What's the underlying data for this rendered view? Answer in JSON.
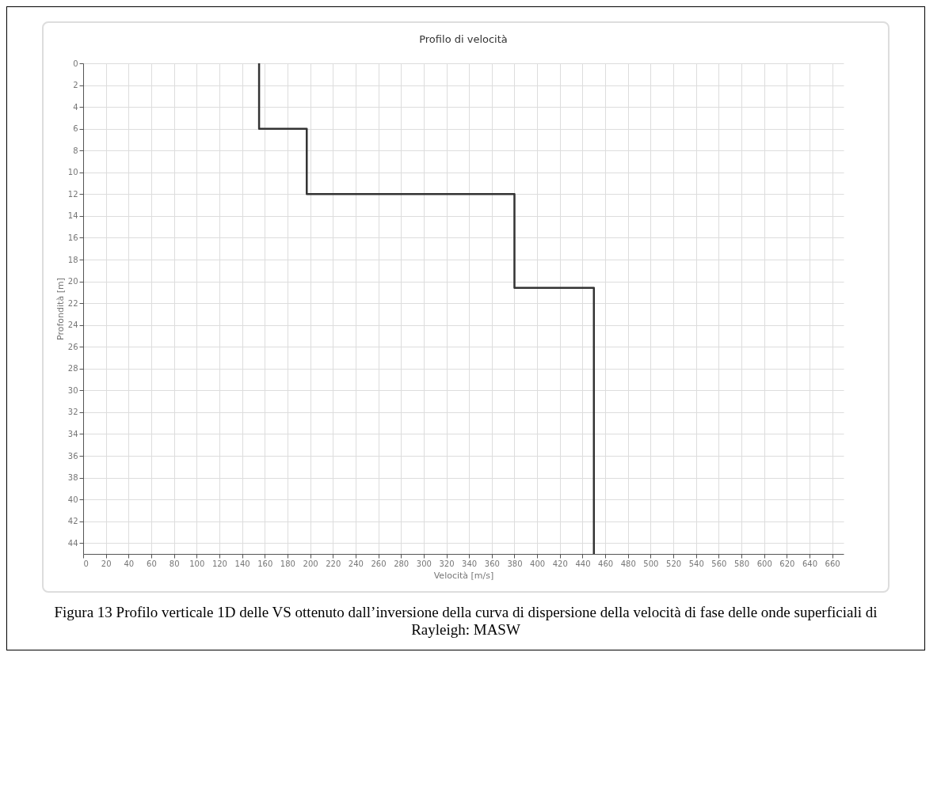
{
  "chart_data": {
    "type": "line",
    "title": "Profilo di velocità",
    "xlabel": "Velocità [m/s]",
    "ylabel": "Profondità [m]",
    "x": [
      155,
      155,
      197,
      197,
      380,
      380,
      450,
      450
    ],
    "series": [
      {
        "color": "#333333",
        "values": [
          0,
          6,
          6,
          12,
          12,
          20.6,
          20.6,
          45
        ]
      }
    ],
    "xlim": [
      0,
      670
    ],
    "xticks": [
      0,
      20,
      40,
      60,
      80,
      100,
      120,
      140,
      160,
      180,
      200,
      220,
      240,
      260,
      280,
      300,
      320,
      340,
      360,
      380,
      400,
      420,
      440,
      460,
      480,
      500,
      520,
      540,
      560,
      580,
      600,
      620,
      640,
      660
    ],
    "ylim": [
      45,
      0
    ],
    "yticks": [
      0,
      2,
      4,
      6,
      8,
      10,
      12,
      14,
      16,
      18,
      20,
      22,
      24,
      26,
      28,
      30,
      32,
      34,
      36,
      38,
      40,
      42,
      44
    ],
    "grid": true,
    "marker": "none",
    "line_style": "solid",
    "annotations": [
      "Figura 13 Profilo verticale 1D delle VS ottenuto dall’inversione della curva di dispersione della velocità di fase delle onde superficiali di Rayleigh: MASW"
    ]
  }
}
